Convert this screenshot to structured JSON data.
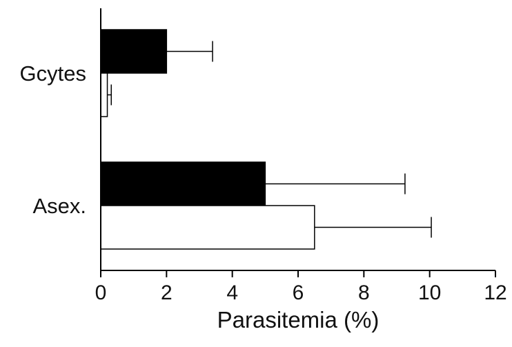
{
  "chart_data": {
    "type": "bar",
    "orientation": "horizontal",
    "categories": [
      "Gcytes",
      "Asex."
    ],
    "series": [
      {
        "fill": "#000000",
        "values": [
          2.0,
          5.0
        ],
        "errors": [
          1.4,
          4.25
        ]
      },
      {
        "fill": "#ffffff",
        "values": [
          0.2,
          6.5
        ],
        "errors": [
          0.12,
          3.55
        ]
      }
    ],
    "xlabel": "Parasitemia (%)",
    "ylabel": "",
    "xlim": [
      0,
      12
    ],
    "xticks": [
      "0",
      "2",
      "4",
      "6",
      "8",
      "10",
      "12"
    ],
    "grid": false,
    "legend": "none",
    "colors": {
      "axis": "#000000",
      "bar_stroke": "#000000"
    }
  }
}
